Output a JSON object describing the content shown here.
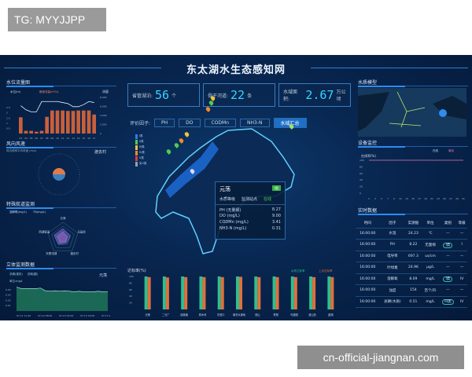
{
  "watermarks": {
    "top_left": "TG: MYYJJPP",
    "bottom_right": "cn-official-jiangnan.com"
  },
  "title": "东太湖水生态感知网",
  "stats": [
    {
      "label": "省管湖泊:",
      "value": "56",
      "unit": "个"
    },
    {
      "label": "骨干河道:",
      "value": "22",
      "unit": "条"
    },
    {
      "label": "水域面积:",
      "value": "2.67",
      "unit": "万公顷"
    }
  ],
  "factors": {
    "label": "评价因子:",
    "buttons": [
      "PH",
      "DO",
      "CODMn",
      "NH3-N",
      "水域汇总"
    ],
    "active": 4
  },
  "map": {
    "legend": [
      "I类",
      "II类",
      "III类",
      "IV类",
      "V类",
      "劣V类"
    ],
    "legend_colors": [
      "#2d7cf0",
      "#4ccf4c",
      "#f2c23c",
      "#f08a2c",
      "#e03c3c",
      "#9aa0a8"
    ],
    "popup": {
      "name": "元荡",
      "badge": "I类",
      "row_a": "水质等级",
      "row_b": "监测站点",
      "row_b_val": "在线",
      "items": [
        {
          "k": "PH (无量纲)",
          "v": "8.27"
        },
        {
          "k": "DO (mg/L)",
          "v": "9.00"
        },
        {
          "k": "CODMn (mg/L)",
          "v": "3.41"
        },
        {
          "k": "NH3-N (mg/L)",
          "v": "0.31"
        }
      ]
    }
  },
  "panels": {
    "water_level": "水位流量图",
    "wind": "风向风速",
    "special": "特殊航道监测",
    "stereo": "立体监测数据",
    "water_model": "水质模型",
    "device": "设备监控",
    "realtime": "实时数据"
  },
  "wind": {
    "subtitle": "风向频率平均风速 (m/s)",
    "station": "渡去村"
  },
  "stereo_meta": {
    "station": "元荡",
    "unit": "单位:mg/L",
    "legend": [
      "总磷(锥形)",
      "总磷(圆)"
    ]
  },
  "radar_meta": {
    "legend": [
      "溶解氧(mg/L)",
      "TN(mg/L)"
    ],
    "axes": [
      "元荡",
      "乐园仓",
      "渡去村",
      "东蒙浅湖",
      "西湖锻溪"
    ]
  },
  "chart_data": [
    {
      "type": "bar",
      "title": "水位流量图",
      "ylabel": "流量",
      "legend": [
        "水位(m)",
        "断面流量(m³/s)"
      ],
      "categories": [
        "03",
        "04",
        "05",
        "06",
        "07",
        "08",
        "09",
        "10",
        "11",
        "12",
        "13",
        "14",
        "15",
        "16",
        "17"
      ],
      "series": [
        {
          "name": "水位(m)",
          "type": "line",
          "values": [
            2.7,
            2.3,
            2.1,
            2.1,
            3.1,
            3.1,
            3.1,
            3.1,
            3.0,
            2.9,
            2.6,
            2.6,
            2.8,
            3.1,
            3.0
          ]
        },
        {
          "name": "断面流量(m³/s)",
          "values": [
            3600,
            600,
            600,
            400,
            600,
            3700,
            5100,
            5100,
            5100,
            5000,
            5000,
            5100,
            5100,
            5100,
            4200
          ]
        }
      ],
      "ylim_left": [
        0,
        3.5
      ],
      "left_ticks": [
        "0.5",
        "1",
        "1.5",
        "2",
        "2.5"
      ],
      "ylim_right": [
        0,
        8000
      ],
      "right_ticks": [
        "0",
        "2,000",
        "4,000",
        "6,000",
        "8,000"
      ],
      "color_line": "#e8f4ff",
      "color_bar": "#c8603c"
    },
    {
      "type": "area",
      "title": "立体监测数据",
      "y_ticks": [
        "0.04",
        "0.03",
        "0.02",
        "0.01"
      ],
      "x_ticks": [
        "07-11 11:00",
        "07-12 08:00",
        "07-13 02:00",
        "07-13 16:00",
        "07-13 20:00"
      ],
      "values": [
        0.045,
        0.042,
        0.042,
        0.042,
        0.042,
        0.043,
        0.038,
        0.037,
        0.038,
        0.037,
        0.038,
        0.037,
        0.036,
        0.037,
        0.036,
        0.036,
        0.036,
        0.037,
        0.036,
        0.036
      ],
      "ylim": [
        0,
        0.05
      ]
    },
    {
      "type": "line",
      "title": "在线率(%)",
      "legend": [
        "在线",
        "离线"
      ],
      "x_ticks": [
        "1",
        "3",
        "5",
        "7",
        "9",
        "11",
        "13",
        "15",
        "17",
        "19",
        "21",
        "23",
        "25",
        "27",
        "29",
        "31"
      ],
      "y_ticks": [
        "100",
        "80",
        "60",
        "40",
        "20",
        "0"
      ],
      "ylim": [
        0,
        100
      ],
      "series": [
        {
          "name": "在线",
          "values": [
            100,
            100,
            100,
            100,
            100,
            100,
            100,
            100,
            100,
            100,
            100,
            100,
            100,
            100,
            100,
            100
          ]
        }
      ]
    },
    {
      "type": "bar",
      "title": "达标率(%)",
      "legend": [
        "水质达标率",
        "上月达标率"
      ],
      "categories": [
        "元荡",
        "二分厂",
        "鼎泰塘",
        "周木河",
        "东宫口",
        "南东水源地",
        "西山",
        "胥湖",
        "乌澳湖",
        "漫山岛",
        "菇湖"
      ],
      "y_ticks": [
        "100",
        "80",
        "60",
        "40",
        "20"
      ],
      "ylim": [
        0,
        100
      ],
      "series": [
        {
          "name": "水质达标率",
          "values": [
            100,
            100,
            100,
            100,
            100,
            100,
            100,
            100,
            100,
            100,
            100
          ],
          "color": "#2fbf8f"
        },
        {
          "name": "上月达标率",
          "values": [
            98,
            97,
            98,
            98,
            98,
            99,
            98,
            98,
            98,
            98,
            98
          ],
          "color": "#e0703c"
        }
      ]
    },
    {
      "type": "radar",
      "title": "特殊航道监测",
      "axes": [
        "元荡",
        "乐园仓",
        "渡去村",
        "东蒙浅湖",
        "西湖锻溪"
      ],
      "series": [
        {
          "name": "溶解氧(mg/L)",
          "values": [
            0.3,
            0.25,
            0.2,
            0.25,
            0.3
          ]
        },
        {
          "name": "TN(mg/L)",
          "values": [
            0.2,
            0.15,
            0.15,
            0.18,
            0.2
          ]
        }
      ]
    }
  ],
  "table": {
    "headers": [
      "时间",
      "因子",
      "实测值",
      "单位",
      "类别",
      "等级"
    ],
    "rows": [
      [
        "16:00:00",
        "水温",
        "24.23",
        "℃",
        "—",
        "—"
      ],
      [
        "16:00:00",
        "PH",
        "8.22",
        "无量纲",
        "I类",
        "I"
      ],
      [
        "16:00:00",
        "电导率",
        "697.3",
        "us/cm",
        "—",
        "—"
      ],
      [
        "16:00:00",
        "叶绿素",
        "24.96",
        "μg/L",
        "—",
        "—"
      ],
      [
        "16:00:00",
        "溶解氧",
        "8.09",
        "mg/L",
        "I类",
        "IV"
      ],
      [
        "16:00:00",
        "浊度",
        "154",
        "百个/升",
        "—",
        "—"
      ],
      [
        "16:00:00",
        "总磷(水质)",
        "0.51",
        "mg/L",
        "III类",
        "IV"
      ]
    ]
  }
}
